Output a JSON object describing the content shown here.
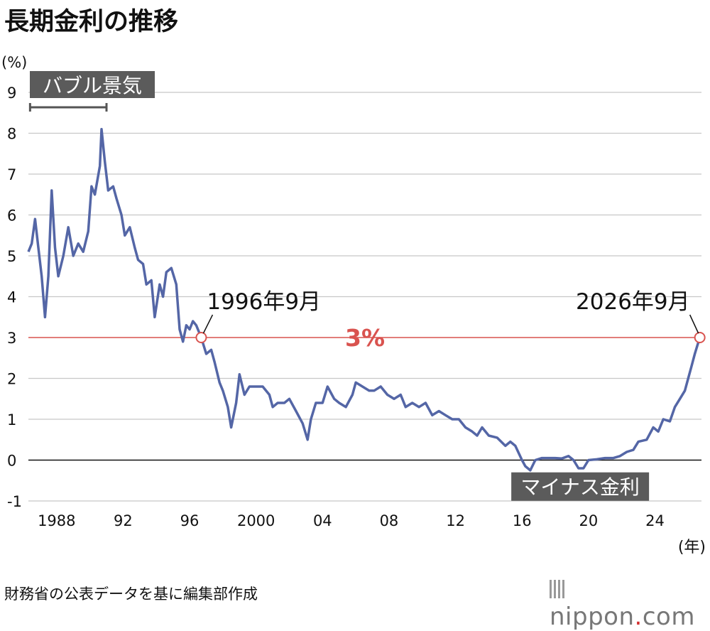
{
  "title": "長期金利の推移",
  "source_note": "財務省の公表データを基に編集部作成",
  "brand": {
    "prefix": "nippon",
    "dot": ".",
    "suffix": "com"
  },
  "colors": {
    "line": "#5466a6",
    "threshold": "#d9534f",
    "grid": "#c8c8c8",
    "label_box": "#5b5b5b"
  },
  "chart_data": {
    "type": "line",
    "title": "長期金利の推移",
    "ylabel": "(%)",
    "xlabel": "(年)",
    "ylim": [
      -1,
      9
    ],
    "xlim": [
      1986.3,
      2026.8
    ],
    "grid": "horizontal",
    "yticks": [
      9,
      8,
      7,
      6,
      5,
      4,
      3,
      2,
      1,
      0,
      -1
    ],
    "xticks": [
      {
        "value": 1988,
        "label": "1988"
      },
      {
        "value": 1992,
        "label": "92"
      },
      {
        "value": 1996,
        "label": "96"
      },
      {
        "value": 2000,
        "label": "2000"
      },
      {
        "value": 2004,
        "label": "04"
      },
      {
        "value": 2008,
        "label": "08"
      },
      {
        "value": 2012,
        "label": "12"
      },
      {
        "value": 2016,
        "label": "16"
      },
      {
        "value": 2020,
        "label": "20"
      },
      {
        "value": 2024,
        "label": "24"
      }
    ],
    "threshold": {
      "value": 3,
      "label": "3%"
    },
    "annotations": [
      {
        "label": "1996年9月",
        "x": 1996.7,
        "y": 3.0
      },
      {
        "label": "2026年9月",
        "x": 2026.7,
        "y": 3.0
      }
    ],
    "periods": [
      {
        "label": "バブル景気",
        "x_start": 1986.4,
        "x_end": 1991.0
      }
    ],
    "callouts": [
      {
        "label": "マイナス金利",
        "x": 2019.5,
        "y": -0.7
      }
    ],
    "series": [
      {
        "values": [
          [
            1986.3,
            5.1
          ],
          [
            1986.5,
            5.3
          ],
          [
            1986.7,
            5.9
          ],
          [
            1986.9,
            5.2
          ],
          [
            1987.1,
            4.5
          ],
          [
            1987.3,
            3.5
          ],
          [
            1987.5,
            4.5
          ],
          [
            1987.7,
            6.6
          ],
          [
            1987.9,
            5.2
          ],
          [
            1988.1,
            4.5
          ],
          [
            1988.4,
            5.0
          ],
          [
            1988.7,
            5.7
          ],
          [
            1989.0,
            5.0
          ],
          [
            1989.3,
            5.3
          ],
          [
            1989.6,
            5.1
          ],
          [
            1989.9,
            5.6
          ],
          [
            1990.1,
            6.7
          ],
          [
            1990.3,
            6.5
          ],
          [
            1990.6,
            7.2
          ],
          [
            1990.7,
            8.1
          ],
          [
            1990.9,
            7.3
          ],
          [
            1991.1,
            6.6
          ],
          [
            1991.4,
            6.7
          ],
          [
            1991.6,
            6.4
          ],
          [
            1991.9,
            6.0
          ],
          [
            1992.1,
            5.5
          ],
          [
            1992.4,
            5.7
          ],
          [
            1992.7,
            5.2
          ],
          [
            1992.9,
            4.9
          ],
          [
            1993.2,
            4.8
          ],
          [
            1993.4,
            4.3
          ],
          [
            1993.7,
            4.4
          ],
          [
            1993.9,
            3.5
          ],
          [
            1994.2,
            4.3
          ],
          [
            1994.4,
            4.0
          ],
          [
            1994.6,
            4.6
          ],
          [
            1994.9,
            4.7
          ],
          [
            1995.2,
            4.3
          ],
          [
            1995.4,
            3.2
          ],
          [
            1995.6,
            2.9
          ],
          [
            1995.8,
            3.3
          ],
          [
            1996.0,
            3.2
          ],
          [
            1996.2,
            3.4
          ],
          [
            1996.4,
            3.3
          ],
          [
            1996.7,
            3.0
          ],
          [
            1997.0,
            2.6
          ],
          [
            1997.3,
            2.7
          ],
          [
            1997.5,
            2.4
          ],
          [
            1997.8,
            1.9
          ],
          [
            1998.0,
            1.7
          ],
          [
            1998.3,
            1.3
          ],
          [
            1998.5,
            0.8
          ],
          [
            1998.8,
            1.4
          ],
          [
            1999.0,
            2.1
          ],
          [
            1999.3,
            1.6
          ],
          [
            1999.6,
            1.8
          ],
          [
            2000.0,
            1.8
          ],
          [
            2000.4,
            1.8
          ],
          [
            2000.8,
            1.6
          ],
          [
            2001.0,
            1.3
          ],
          [
            2001.3,
            1.4
          ],
          [
            2001.7,
            1.4
          ],
          [
            2002.0,
            1.5
          ],
          [
            2002.4,
            1.2
          ],
          [
            2002.8,
            0.9
          ],
          [
            2003.1,
            0.5
          ],
          [
            2003.3,
            1.0
          ],
          [
            2003.6,
            1.4
          ],
          [
            2004.0,
            1.4
          ],
          [
            2004.3,
            1.8
          ],
          [
            2004.7,
            1.5
          ],
          [
            2005.0,
            1.4
          ],
          [
            2005.4,
            1.3
          ],
          [
            2005.8,
            1.6
          ],
          [
            2006.0,
            1.9
          ],
          [
            2006.4,
            1.8
          ],
          [
            2006.8,
            1.7
          ],
          [
            2007.1,
            1.7
          ],
          [
            2007.5,
            1.8
          ],
          [
            2007.9,
            1.6
          ],
          [
            2008.3,
            1.5
          ],
          [
            2008.7,
            1.6
          ],
          [
            2009.0,
            1.3
          ],
          [
            2009.4,
            1.4
          ],
          [
            2009.8,
            1.3
          ],
          [
            2010.2,
            1.4
          ],
          [
            2010.6,
            1.1
          ],
          [
            2011.0,
            1.2
          ],
          [
            2011.4,
            1.1
          ],
          [
            2011.8,
            1.0
          ],
          [
            2012.2,
            1.0
          ],
          [
            2012.6,
            0.8
          ],
          [
            2013.0,
            0.7
          ],
          [
            2013.3,
            0.6
          ],
          [
            2013.6,
            0.8
          ],
          [
            2014.0,
            0.6
          ],
          [
            2014.5,
            0.55
          ],
          [
            2015.0,
            0.35
          ],
          [
            2015.3,
            0.45
          ],
          [
            2015.6,
            0.35
          ],
          [
            2016.0,
            0.0
          ],
          [
            2016.2,
            -0.15
          ],
          [
            2016.5,
            -0.25
          ],
          [
            2016.8,
            0.0
          ],
          [
            2017.2,
            0.05
          ],
          [
            2017.6,
            0.05
          ],
          [
            2018.0,
            0.05
          ],
          [
            2018.4,
            0.04
          ],
          [
            2018.8,
            0.1
          ],
          [
            2019.1,
            0.0
          ],
          [
            2019.4,
            -0.2
          ],
          [
            2019.7,
            -0.2
          ],
          [
            2020.0,
            0.0
          ],
          [
            2020.5,
            0.02
          ],
          [
            2021.0,
            0.05
          ],
          [
            2021.5,
            0.05
          ],
          [
            2021.9,
            0.1
          ],
          [
            2022.3,
            0.2
          ],
          [
            2022.7,
            0.25
          ],
          [
            2023.0,
            0.45
          ],
          [
            2023.5,
            0.5
          ],
          [
            2023.9,
            0.8
          ],
          [
            2024.2,
            0.7
          ],
          [
            2024.5,
            1.0
          ],
          [
            2024.9,
            0.95
          ],
          [
            2025.2,
            1.3
          ],
          [
            2025.5,
            1.5
          ],
          [
            2025.8,
            1.7
          ],
          [
            2026.0,
            2.0
          ],
          [
            2026.2,
            2.3
          ],
          [
            2026.4,
            2.6
          ],
          [
            2026.55,
            2.8
          ],
          [
            2026.7,
            3.0
          ]
        ]
      }
    ]
  }
}
